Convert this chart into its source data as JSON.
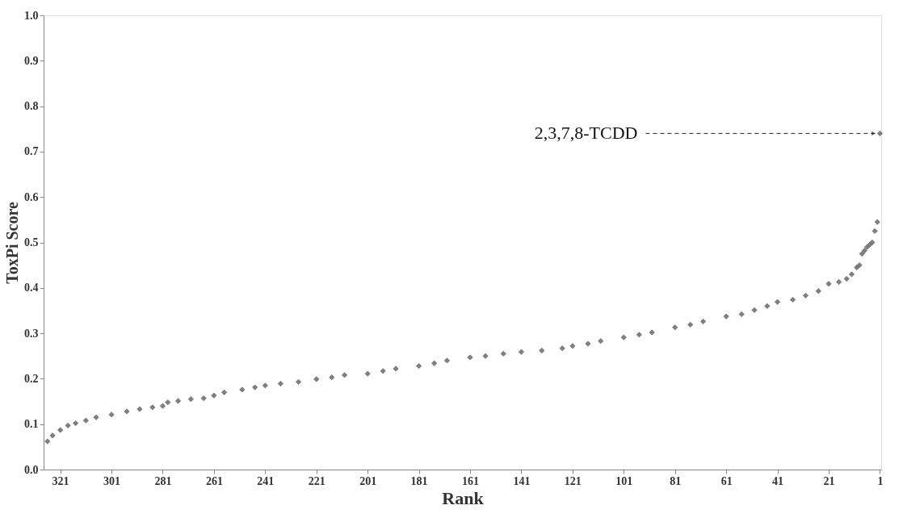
{
  "chart_data": {
    "type": "scatter",
    "xlabel": "Rank",
    "ylabel": "ToxPi Score",
    "x": [
      326,
      324,
      321,
      318,
      315,
      311,
      307,
      301,
      295,
      290,
      285,
      281,
      279,
      275,
      270,
      265,
      261,
      257,
      250,
      245,
      241,
      235,
      228,
      221,
      215,
      210,
      201,
      195,
      190,
      181,
      175,
      170,
      161,
      155,
      148,
      141,
      133,
      125,
      121,
      115,
      110,
      101,
      95,
      90,
      81,
      75,
      70,
      61,
      55,
      50,
      45,
      41,
      35,
      30,
      25,
      21,
      17,
      14,
      12,
      10,
      9,
      8,
      7,
      6,
      5,
      4,
      3,
      2,
      1
    ],
    "series": [
      {
        "color": "#808080",
        "values": [
          0.062,
          0.075,
          0.087,
          0.097,
          0.102,
          0.108,
          0.115,
          0.121,
          0.128,
          0.133,
          0.137,
          0.14,
          0.148,
          0.151,
          0.155,
          0.157,
          0.163,
          0.17,
          0.176,
          0.181,
          0.185,
          0.189,
          0.193,
          0.199,
          0.203,
          0.208,
          0.211,
          0.217,
          0.222,
          0.228,
          0.234,
          0.24,
          0.247,
          0.25,
          0.255,
          0.259,
          0.262,
          0.267,
          0.272,
          0.277,
          0.283,
          0.291,
          0.297,
          0.302,
          0.313,
          0.319,
          0.326,
          0.337,
          0.342,
          0.351,
          0.36,
          0.369,
          0.374,
          0.383,
          0.393,
          0.409,
          0.413,
          0.42,
          0.43,
          0.445,
          0.45,
          0.475,
          0.482,
          0.49,
          0.495,
          0.5,
          0.525,
          0.545,
          0.74
        ]
      }
    ],
    "xlim": [
      327.5,
      0.5
    ],
    "xticks": [
      321,
      301,
      281,
      261,
      241,
      221,
      201,
      181,
      161,
      141,
      121,
      101,
      81,
      61,
      41,
      21,
      1
    ],
    "ylim": [
      0,
      1
    ],
    "yticks": [
      {
        "value": 0,
        "label": "0.0"
      },
      {
        "value": 0.1,
        "label": "0.1"
      },
      {
        "value": 0.2,
        "label": "0.2"
      },
      {
        "value": 0.3,
        "label": "0.3"
      },
      {
        "value": 0.4,
        "label": "0.4"
      },
      {
        "value": 0.5,
        "label": "0.5"
      },
      {
        "value": 0.6,
        "label": "0.6"
      },
      {
        "value": 0.7,
        "label": "0.7"
      },
      {
        "value": 0.8,
        "label": "0.8"
      },
      {
        "value": 0.9,
        "label": "0.9"
      },
      {
        "value": 1,
        "label": "1.0"
      }
    ],
    "annotations": [
      {
        "text": "2,3,7,8-TCDD",
        "x": 1,
        "y": 0.74
      }
    ],
    "marker": "diamond",
    "grid": false
  }
}
